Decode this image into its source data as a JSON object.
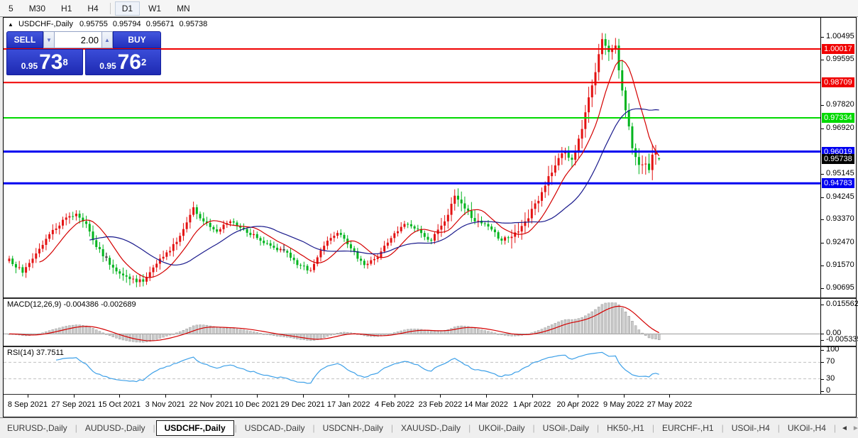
{
  "toolbar": {
    "items": [
      {
        "label": "5",
        "active": false
      },
      {
        "label": "M30",
        "active": false
      },
      {
        "label": "H1",
        "active": false
      },
      {
        "label": "H4",
        "active": false
      },
      {
        "label": "D1",
        "active": true
      },
      {
        "label": "W1",
        "active": false
      },
      {
        "label": "MN",
        "active": false
      }
    ]
  },
  "quote_header": {
    "collapse_icon": "▲",
    "symbol": "USDCHF-,Daily",
    "open": "0.95755",
    "high": "0.95794",
    "low": "0.95671",
    "close": "0.95738"
  },
  "trade_panel": {
    "sell_label": "SELL",
    "buy_label": "BUY",
    "volume": "2.00",
    "spin_down": "▼",
    "spin_up": "▲",
    "sell_price": {
      "prefix": "0.95",
      "big": "73",
      "sup": "8"
    },
    "buy_price": {
      "prefix": "0.95",
      "big": "76",
      "sup": "2"
    }
  },
  "chart_data": {
    "type": "candlestick",
    "symbol": "USDCHF",
    "timeframe": "Daily",
    "colors": {
      "up": "#e31212",
      "down": "#00b41e",
      "doji": "#111111",
      "ma_fast": "#d40000",
      "ma_slow": "#1a1a8c",
      "macd_hist": "#c9c9c9",
      "macd_hist_border": "#9b9b9b",
      "macd_signal": "#d40000",
      "rsi": "#3da0e8",
      "rsi_level": "#c0c0c0"
    },
    "y_axis": {
      "max": 1.01234,
      "min": 0.90336,
      "ticks": [
        "1.00495",
        "0.99595",
        "0.97820",
        "0.96920",
        "0.95145",
        "0.94245",
        "0.93370",
        "0.92470",
        "0.91570",
        "0.90695"
      ]
    },
    "levels": [
      {
        "value": 1.00017,
        "label": "1.00017",
        "color": "#f00000",
        "width": 2
      },
      {
        "value": 0.98709,
        "label": "0.98709",
        "color": "#f00000",
        "width": 2
      },
      {
        "value": 0.97334,
        "label": "0.97334",
        "color": "#00d900",
        "width": 2
      },
      {
        "value": 0.96019,
        "label": "0.96019",
        "color": "#0000f0",
        "width": 3
      },
      {
        "value": 0.94783,
        "label": "0.94783",
        "color": "#0000f0",
        "width": 3
      }
    ],
    "current_price": {
      "value": 0.95738,
      "label": "0.95738",
      "bg": "#000000"
    },
    "candles": {
      "count": 195,
      "seed": 7,
      "anchors": [
        [
          0,
          0.9185
        ],
        [
          4,
          0.913
        ],
        [
          8,
          0.9205
        ],
        [
          12,
          0.928
        ],
        [
          17,
          0.9345
        ],
        [
          20,
          0.936
        ],
        [
          23,
          0.932
        ],
        [
          26,
          0.923
        ],
        [
          31,
          0.915
        ],
        [
          36,
          0.9105
        ],
        [
          40,
          0.9095
        ],
        [
          44,
          0.9165
        ],
        [
          48,
          0.9215
        ],
        [
          52,
          0.93
        ],
        [
          55,
          0.9385
        ],
        [
          58,
          0.933
        ],
        [
          62,
          0.929
        ],
        [
          66,
          0.933
        ],
        [
          70,
          0.93
        ],
        [
          74,
          0.9265
        ],
        [
          78,
          0.9235
        ],
        [
          82,
          0.9215
        ],
        [
          86,
          0.916
        ],
        [
          90,
          0.914
        ],
        [
          94,
          0.9235
        ],
        [
          98,
          0.9285
        ],
        [
          102,
          0.9225
        ],
        [
          106,
          0.916
        ],
        [
          110,
          0.919
        ],
        [
          114,
          0.9265
        ],
        [
          118,
          0.932
        ],
        [
          122,
          0.93
        ],
        [
          126,
          0.9255
        ],
        [
          130,
          0.933
        ],
        [
          133,
          0.943
        ],
        [
          136,
          0.938
        ],
        [
          139,
          0.933
        ],
        [
          143,
          0.931
        ],
        [
          147,
          0.9255
        ],
        [
          150,
          0.927
        ],
        [
          154,
          0.933
        ],
        [
          158,
          0.941
        ],
        [
          162,
          0.952
        ],
        [
          165,
          0.9595
        ],
        [
          168,
          0.957
        ],
        [
          171,
          0.969
        ],
        [
          174,
          0.986
        ],
        [
          177,
          1.004
        ],
        [
          179,
          0.999
        ],
        [
          181,
          1.0015
        ],
        [
          183,
          0.984
        ],
        [
          185,
          0.97
        ],
        [
          186,
          0.9615
        ],
        [
          188,
          0.955
        ],
        [
          190,
          0.9555
        ],
        [
          191,
          0.953
        ],
        [
          192,
          0.959
        ],
        [
          193,
          0.9605
        ],
        [
          194,
          0.95738
        ]
      ],
      "doji_indices": [
        29,
        82
      ],
      "forced_highs": {
        "177": 1.0064
      },
      "forced_lows": {
        "191": 0.9518
      },
      "last": {
        "o": 0.95755,
        "h": 0.95794,
        "l": 0.95671,
        "c": 0.95738
      }
    },
    "moving_averages": {
      "fast_period": 10,
      "slow_period": 25
    },
    "macd": {
      "label": "MACD(12,26,9)",
      "values_text": "-0.004386 -0.002689",
      "fast": 12,
      "slow": 26,
      "signal": 9,
      "axis": {
        "max": 0.0178,
        "min": -0.006
      },
      "ticks": [
        {
          "v": 0.015562,
          "label": "0.015562"
        },
        {
          "v": 0,
          "label": "0.00"
        },
        {
          "v": -0.005335,
          "label": "-0.005335"
        }
      ]
    },
    "rsi": {
      "label": "RSI(14)",
      "value_text": "37.7511",
      "period": 14,
      "levels": [
        70,
        30
      ],
      "ticks": [
        {
          "v": 100,
          "label": "100"
        },
        {
          "v": 70,
          "label": "70"
        },
        {
          "v": 30,
          "label": "30"
        },
        {
          "v": 0,
          "label": "0"
        }
      ]
    },
    "x_axis": {
      "labels": [
        "8 Sep 2021",
        "27 Sep 2021",
        "15 Oct 2021",
        "3 Nov 2021",
        "22 Nov 2021",
        "10 Dec 2021",
        "29 Dec 2021",
        "17 Jan 2022",
        "4 Feb 2022",
        "23 Feb 2022",
        "14 Mar 2022",
        "1 Apr 2022",
        "20 Apr 2022",
        "9 May 2022",
        "27 May 2022"
      ]
    }
  },
  "tabs": {
    "items": [
      "EURUSD-,Daily",
      "AUDUSD-,Daily",
      "USDCHF-,Daily",
      "USDCAD-,Daily",
      "USDCNH-,Daily",
      "XAUUSD-,Daily",
      "UKOil-,Daily",
      "USOil-,Daily",
      "HK50-,H1",
      "EURCHF-,H1",
      "USOil-,H4",
      "UKOil-,H4"
    ],
    "active_index": 2,
    "scroll_left": "◄",
    "scroll_right": "►"
  }
}
